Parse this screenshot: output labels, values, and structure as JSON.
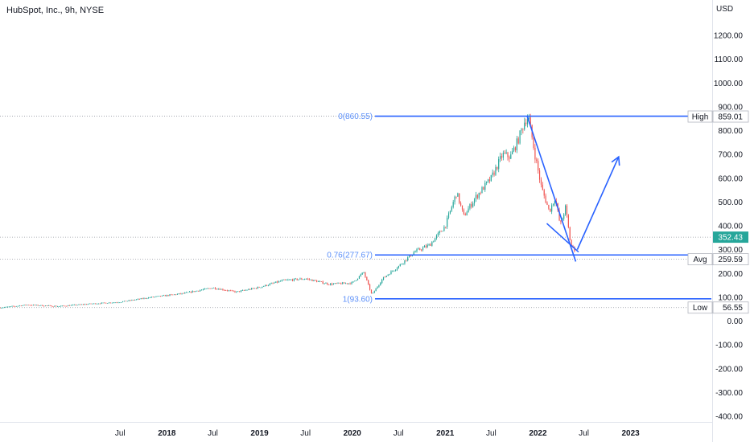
{
  "title": "HubSpot, Inc., 9h, NYSE",
  "currency": "USD",
  "chart_data": {
    "type": "line",
    "y_scale": "linear",
    "ylim": [
      -430,
      1330
    ],
    "xlim": [
      "2016-03-15",
      "2023-11-15"
    ],
    "y_ticks": [
      1200,
      1100,
      1000,
      900,
      800,
      700,
      600,
      500,
      400,
      300,
      200,
      100,
      0,
      -100,
      -200,
      -300,
      -400
    ],
    "y_tick_labels": [
      "1200.00",
      "1100.00",
      "1000.00",
      "900.00",
      "800.00",
      "700.00",
      "600.00",
      "500.00",
      "400.00",
      "300.00",
      "200.00",
      "100.00",
      "0.00",
      "-100.00",
      "-200.00",
      "-300.00",
      "-400.00"
    ],
    "x_ticks": [
      {
        "label": "Jul",
        "date": "2017-07-01"
      },
      {
        "label": "2018",
        "date": "2018-01-01"
      },
      {
        "label": "Jul",
        "date": "2018-07-01"
      },
      {
        "label": "2019",
        "date": "2019-01-01"
      },
      {
        "label": "Jul",
        "date": "2019-07-01"
      },
      {
        "label": "2020",
        "date": "2020-01-01"
      },
      {
        "label": "Jul",
        "date": "2020-07-01"
      },
      {
        "label": "2021",
        "date": "2021-01-01"
      },
      {
        "label": "Jul",
        "date": "2021-07-01"
      },
      {
        "label": "2022",
        "date": "2022-01-01"
      },
      {
        "label": "Jul",
        "date": "2022-07-01"
      },
      {
        "label": "2023",
        "date": "2023-01-01"
      }
    ],
    "price_series": {
      "dates": [
        "2016-03-15",
        "2016-07-01",
        "2016-11-01",
        "2017-03-01",
        "2017-07-01",
        "2017-11-01",
        "2018-03-01",
        "2018-07-01",
        "2018-10-01",
        "2019-01-01",
        "2019-04-01",
        "2019-07-01",
        "2019-10-01",
        "2020-01-01",
        "2020-02-15",
        "2020-03-18",
        "2020-05-01",
        "2020-07-01",
        "2020-09-01",
        "2020-11-01",
        "2021-01-01",
        "2021-02-15",
        "2021-03-15",
        "2021-05-01",
        "2021-07-01",
        "2021-08-15",
        "2021-09-15",
        "2021-10-15",
        "2021-11-10",
        "2021-11-25",
        "2021-12-20",
        "2022-01-15",
        "2022-02-15",
        "2022-03-10",
        "2022-03-30",
        "2022-04-20",
        "2022-05-10",
        "2022-05-25"
      ],
      "values": [
        56,
        68,
        62,
        72,
        80,
        100,
        115,
        140,
        122,
        142,
        170,
        178,
        155,
        160,
        205,
        110,
        180,
        230,
        290,
        320,
        400,
        540,
        440,
        520,
        600,
        700,
        690,
        760,
        840,
        859,
        700,
        560,
        460,
        520,
        400,
        480,
        320,
        300
      ]
    },
    "last_price": "352.43",
    "last_price_value": 352.43,
    "fibonacci": [
      {
        "label": "0(860.55)",
        "value": 860.55
      },
      {
        "label": "0.76(277.67)",
        "value": 277.67
      },
      {
        "label": "1(93.60)",
        "value": 93.6
      }
    ],
    "axis_markers": [
      {
        "tag": "High",
        "value_label": "859.01",
        "value": 859.01
      },
      {
        "tag": "Avg",
        "value_label": "259.59",
        "value": 259.59
      },
      {
        "tag": "Low",
        "value_label": "56.55",
        "value": 56.55
      }
    ],
    "drawings": {
      "channel_upper": [
        [
          "2021-11-20",
          860
        ],
        [
          "2022-05-30",
          250
        ]
      ],
      "channel_lower": [
        [
          "2022-02-05",
          410
        ],
        [
          "2022-06-10",
          290
        ]
      ],
      "projection_arrow": [
        [
          "2022-06-05",
          300
        ],
        [
          "2022-11-15",
          690
        ]
      ]
    },
    "colors": {
      "up": "#26a69a",
      "down": "#ef5350",
      "drawing": "#2962ff",
      "fib_label": "#5b8ff9",
      "last_price_bg": "#26a69a",
      "axis_text": "#131722",
      "dotted": "#9598a1"
    }
  }
}
